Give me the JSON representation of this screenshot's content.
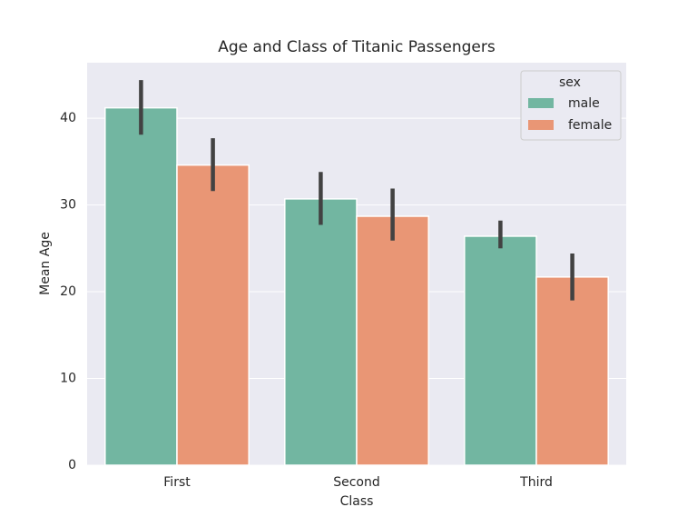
{
  "chart_data": {
    "type": "bar",
    "title": "Age and Class of Titanic Passengers",
    "x_label": "Class",
    "y_label": "Mean Age",
    "categories": [
      "First",
      "Second",
      "Third"
    ],
    "legend_title": "sex",
    "legend_position": "upper right",
    "grid": true,
    "series": [
      {
        "name": "male",
        "color": "#72b6a1",
        "values": [
          41.2,
          30.7,
          26.4
        ],
        "ci": [
          [
            38.1,
            44.4
          ],
          [
            27.7,
            33.8
          ],
          [
            25.0,
            28.2
          ]
        ]
      },
      {
        "name": "female",
        "color": "#e99675",
        "values": [
          34.6,
          28.7,
          21.7
        ],
        "ci": [
          [
            31.6,
            37.7
          ],
          [
            25.9,
            31.9
          ],
          [
            19.0,
            24.4
          ]
        ]
      }
    ],
    "ylim": [
      0,
      46.4
    ],
    "yticks": [
      0,
      10,
      20,
      30,
      40
    ]
  }
}
